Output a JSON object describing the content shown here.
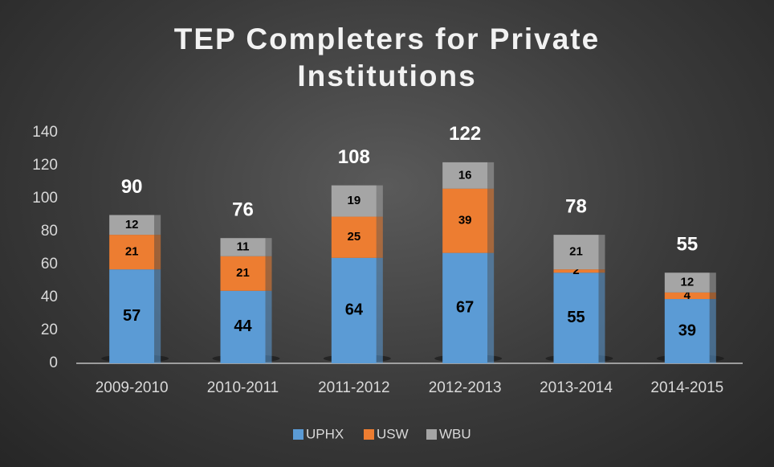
{
  "chart_data": {
    "type": "stacked_bar",
    "title": "TEP Completers for Private Institutions",
    "categories": [
      "2009-2010",
      "2010-2011",
      "2011-2012",
      "2012-2013",
      "2013-2014",
      "2014-2015"
    ],
    "series": [
      {
        "name": "UPHX",
        "color": "#5b9bd5",
        "values": [
          57,
          44,
          64,
          67,
          55,
          39
        ]
      },
      {
        "name": "USW",
        "color": "#ed7d31",
        "values": [
          21,
          21,
          25,
          39,
          2,
          4
        ]
      },
      {
        "name": "WBU",
        "color": "#a5a5a5",
        "values": [
          12,
          11,
          19,
          16,
          21,
          12
        ]
      }
    ],
    "totals": [
      90,
      76,
      108,
      122,
      78,
      55
    ],
    "ylim": [
      0,
      140
    ],
    "yticks": [
      0,
      20,
      40,
      60,
      80,
      100,
      120,
      140
    ],
    "grid": false,
    "legend": "bottom"
  }
}
